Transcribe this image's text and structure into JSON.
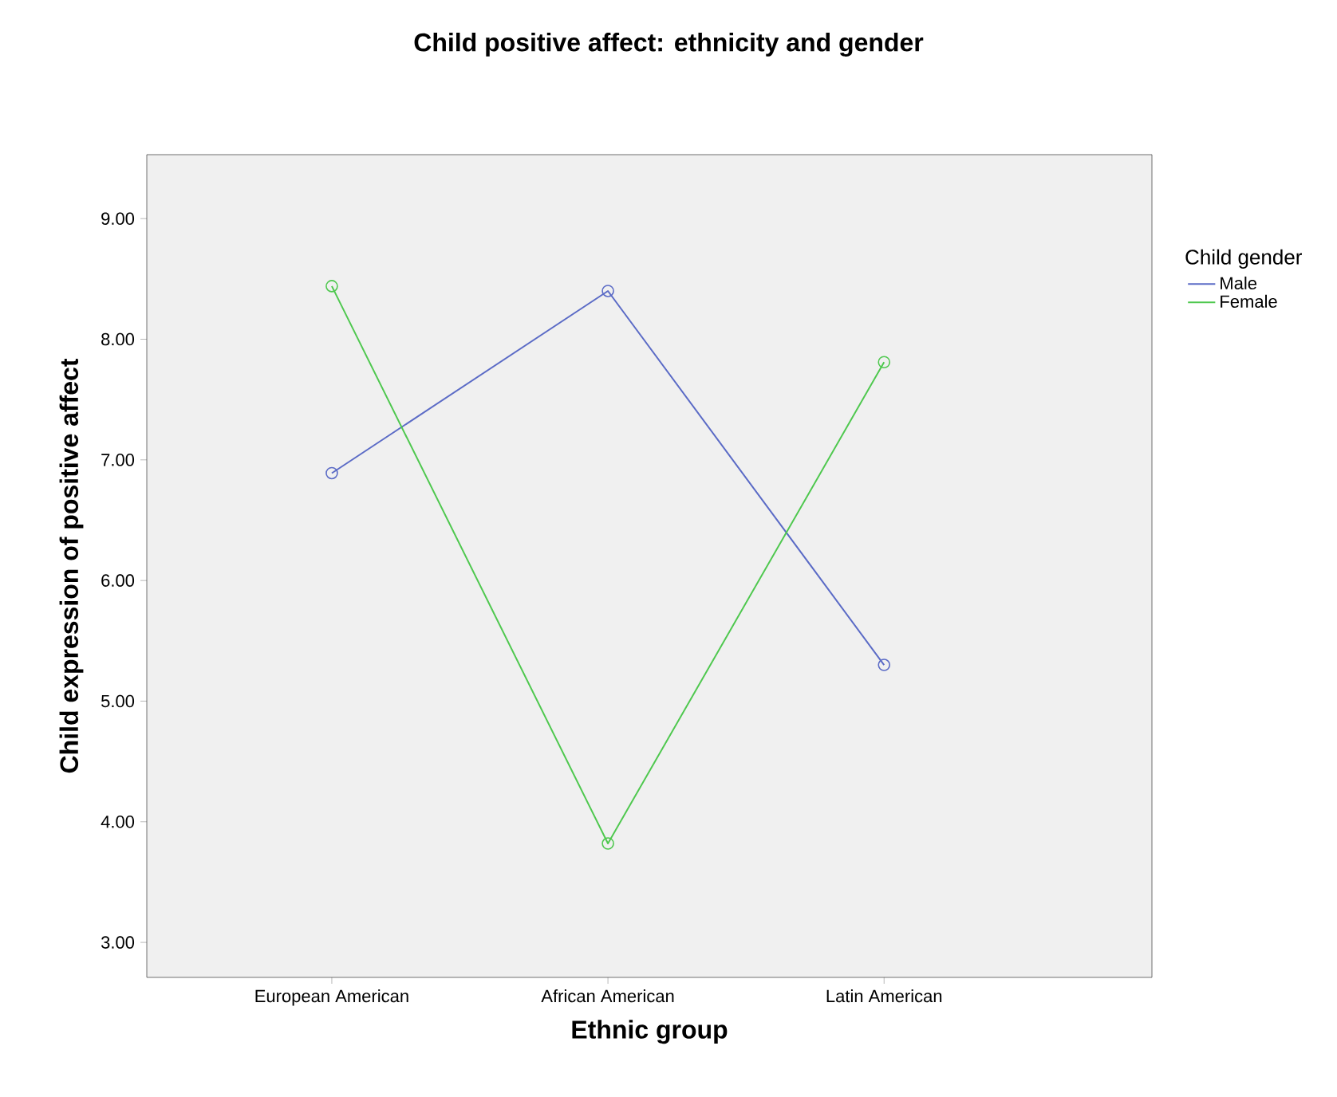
{
  "chart_data": {
    "type": "line",
    "title": "Child positive affect: ethnicity and gender",
    "xlabel": "Ethnic group",
    "ylabel": "Child expression of positive affect",
    "legend_title": "Child gender",
    "categories": [
      "European American",
      "African American",
      "Latin American"
    ],
    "series": [
      {
        "name": "Male",
        "color": "#5b6bc6",
        "values": [
          6.89,
          8.4,
          5.3
        ]
      },
      {
        "name": "Female",
        "color": "#4fc84f",
        "values": [
          8.44,
          3.82,
          7.81
        ]
      }
    ],
    "ylim": [
      2.71,
      9.53
    ],
    "yticks": [
      {
        "value": 3,
        "label": "3.00"
      },
      {
        "value": 4,
        "label": "4.00"
      },
      {
        "value": 5,
        "label": "5.00"
      },
      {
        "value": 6,
        "label": "6.00"
      },
      {
        "value": 7,
        "label": "7.00"
      },
      {
        "value": 8,
        "label": "8.00"
      },
      {
        "value": 9,
        "label": "9.00"
      }
    ],
    "grid": false,
    "legend": "top right",
    "marker": "circle",
    "line_style": "solid"
  }
}
